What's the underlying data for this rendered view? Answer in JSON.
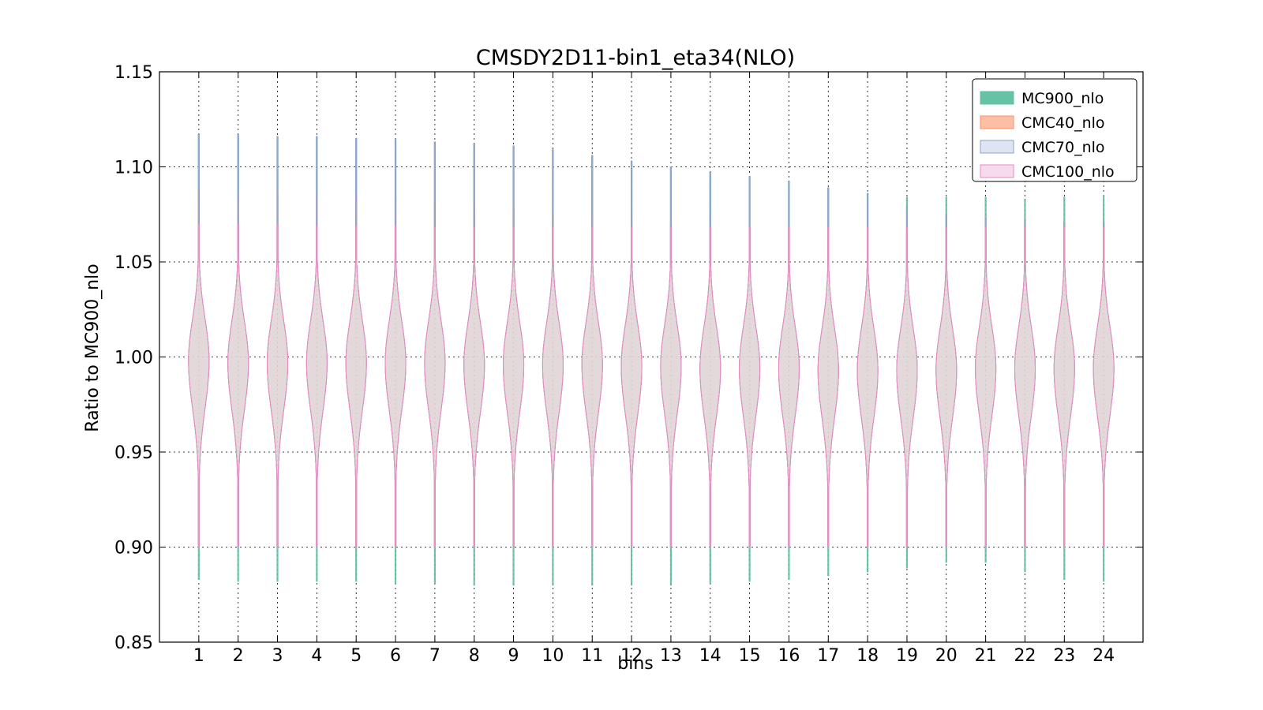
{
  "chart_data": {
    "type": "violin",
    "title": "CMSDY2D11-bin1_eta34(NLO)",
    "xlabel": "bins",
    "ylabel": "Ratio to MC900_nlo",
    "ylim": [
      0.85,
      1.15
    ],
    "yticks": [
      "0.85",
      "0.90",
      "0.95",
      "1.00",
      "1.05",
      "1.10",
      "1.15"
    ],
    "categories": [
      "1",
      "2",
      "3",
      "4",
      "5",
      "6",
      "7",
      "8",
      "9",
      "10",
      "11",
      "12",
      "13",
      "14",
      "15",
      "16",
      "17",
      "18",
      "19",
      "20",
      "21",
      "22",
      "23",
      "24"
    ],
    "grid": true,
    "legend_position": "top-right",
    "series": [
      {
        "name": "MC900_nlo",
        "color": "#66c2a5",
        "fill": "#66c2a5",
        "median": [
          0.998,
          0.997,
          0.997,
          0.997,
          0.997,
          0.997,
          0.997,
          0.996,
          0.996,
          0.996,
          0.996,
          0.995,
          0.995,
          0.994,
          0.994,
          0.994,
          0.993,
          0.993,
          0.993,
          0.993,
          0.994,
          0.994,
          0.994,
          0.994
        ],
        "max": [
          1.117,
          1.117,
          1.116,
          1.116,
          1.115,
          1.114,
          1.113,
          1.112,
          1.111,
          1.109,
          1.106,
          1.103,
          1.1,
          1.097,
          1.095,
          1.092,
          1.089,
          1.086,
          1.084,
          1.084,
          1.084,
          1.083,
          1.084,
          1.085
        ],
        "min": [
          0.883,
          0.882,
          0.882,
          0.882,
          0.882,
          0.881,
          0.881,
          0.88,
          0.88,
          0.88,
          0.88,
          0.88,
          0.88,
          0.881,
          0.882,
          0.883,
          0.885,
          0.887,
          0.889,
          0.892,
          0.892,
          0.887,
          0.883,
          0.882
        ]
      },
      {
        "name": "CMC40_nlo",
        "color": "#fc8d62",
        "fill": "#fcbfa5",
        "median": [
          0.998,
          0.997,
          0.997,
          0.997,
          0.997,
          0.997,
          0.997,
          0.996,
          0.996,
          0.996,
          0.996,
          0.995,
          0.995,
          0.994,
          0.994,
          0.994,
          0.993,
          0.993,
          0.993,
          0.993,
          0.994,
          0.994,
          0.994,
          0.994
        ],
        "max": [
          1.087,
          1.086,
          1.086,
          1.085,
          1.084,
          1.083,
          1.082,
          1.08,
          1.078,
          1.076,
          1.074,
          1.072,
          1.07,
          1.069,
          1.068,
          1.067,
          1.067,
          1.067,
          1.067,
          1.068,
          1.068,
          1.069,
          1.069,
          1.07
        ],
        "min": [
          0.9,
          0.9,
          0.9,
          0.9,
          0.9,
          0.9,
          0.9,
          0.9,
          0.9,
          0.9,
          0.9,
          0.9,
          0.9,
          0.9,
          0.9,
          0.9,
          0.9,
          0.9,
          0.9,
          0.9,
          0.9,
          0.9,
          0.9,
          0.9
        ]
      },
      {
        "name": "CMC70_nlo",
        "color": "#8da0cb",
        "fill": "#dfe4f2",
        "median": [
          0.998,
          0.997,
          0.997,
          0.997,
          0.997,
          0.997,
          0.997,
          0.996,
          0.996,
          0.996,
          0.996,
          0.995,
          0.995,
          0.994,
          0.994,
          0.994,
          0.993,
          0.993,
          0.993,
          0.993,
          0.994,
          0.994,
          0.994,
          0.994
        ],
        "max": [
          1.117,
          1.117,
          1.116,
          1.116,
          1.115,
          1.114,
          1.113,
          1.112,
          1.111,
          1.109,
          1.106,
          1.103,
          1.1,
          1.097,
          1.095,
          1.092,
          1.089,
          1.086,
          1.079,
          1.075,
          1.073,
          1.072,
          1.071,
          1.071
        ],
        "min": [
          0.9,
          0.9,
          0.9,
          0.9,
          0.9,
          0.9,
          0.9,
          0.9,
          0.9,
          0.9,
          0.9,
          0.9,
          0.9,
          0.9,
          0.9,
          0.9,
          0.9,
          0.9,
          0.9,
          0.9,
          0.9,
          0.9,
          0.9,
          0.9
        ]
      },
      {
        "name": "CMC100_nlo",
        "color": "#e78ac3",
        "fill": "#f7dbec",
        "median": [
          0.998,
          0.997,
          0.997,
          0.997,
          0.997,
          0.997,
          0.997,
          0.996,
          0.996,
          0.996,
          0.996,
          0.995,
          0.995,
          0.994,
          0.994,
          0.994,
          0.993,
          0.993,
          0.993,
          0.993,
          0.994,
          0.994,
          0.994,
          0.994
        ],
        "max": [
          1.07,
          1.07,
          1.07,
          1.069,
          1.069,
          1.069,
          1.068,
          1.068,
          1.068,
          1.068,
          1.068,
          1.068,
          1.068,
          1.068,
          1.068,
          1.068,
          1.068,
          1.068,
          1.068,
          1.068,
          1.068,
          1.068,
          1.068,
          1.068
        ],
        "min": [
          0.9,
          0.9,
          0.9,
          0.9,
          0.9,
          0.9,
          0.9,
          0.9,
          0.9,
          0.9,
          0.9,
          0.9,
          0.9,
          0.9,
          0.9,
          0.9,
          0.9,
          0.9,
          0.9,
          0.9,
          0.9,
          0.9,
          0.9,
          0.9
        ]
      }
    ]
  }
}
